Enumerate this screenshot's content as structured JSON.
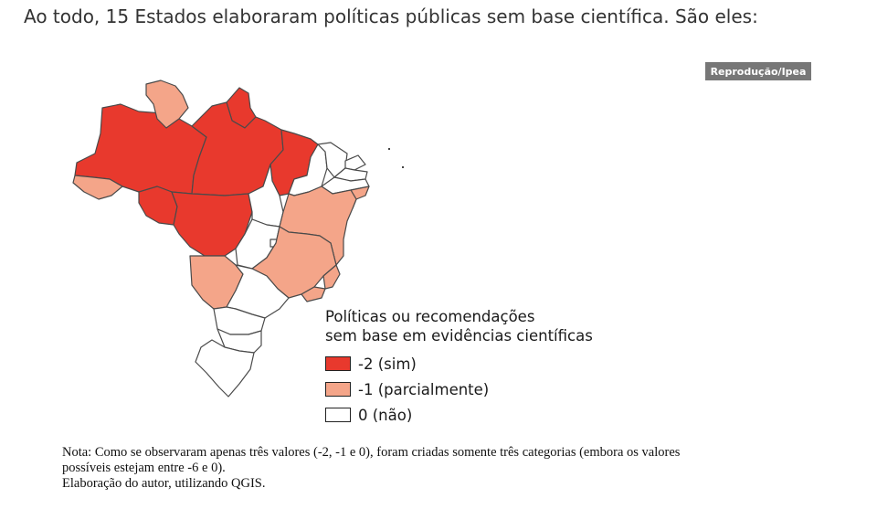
{
  "headline": "Ao todo, 15 Estados elaboraram políticas públicas sem base científica. São eles:",
  "credit": "Reprodução/Ipea",
  "map": {
    "legend": {
      "title_line1": "Políticas ou recomendações",
      "title_line2": "sem base em evidências científicas",
      "items": [
        {
          "label": "-2 (sim)",
          "color": "#e8392d"
        },
        {
          "label": "-1 (parcialmente)",
          "color": "#f4a589"
        },
        {
          "label": "0 (não)",
          "color": "#ffffff"
        }
      ]
    }
  },
  "note": {
    "line1": "Nota: Como se observaram apenas três valores (-2, -1 e 0), foram criadas somente três categorias (embora os valores",
    "line2": "possíveis estejam entre -6 e 0).",
    "line3": "Elaboração do autor, utilizando QGIS."
  }
}
